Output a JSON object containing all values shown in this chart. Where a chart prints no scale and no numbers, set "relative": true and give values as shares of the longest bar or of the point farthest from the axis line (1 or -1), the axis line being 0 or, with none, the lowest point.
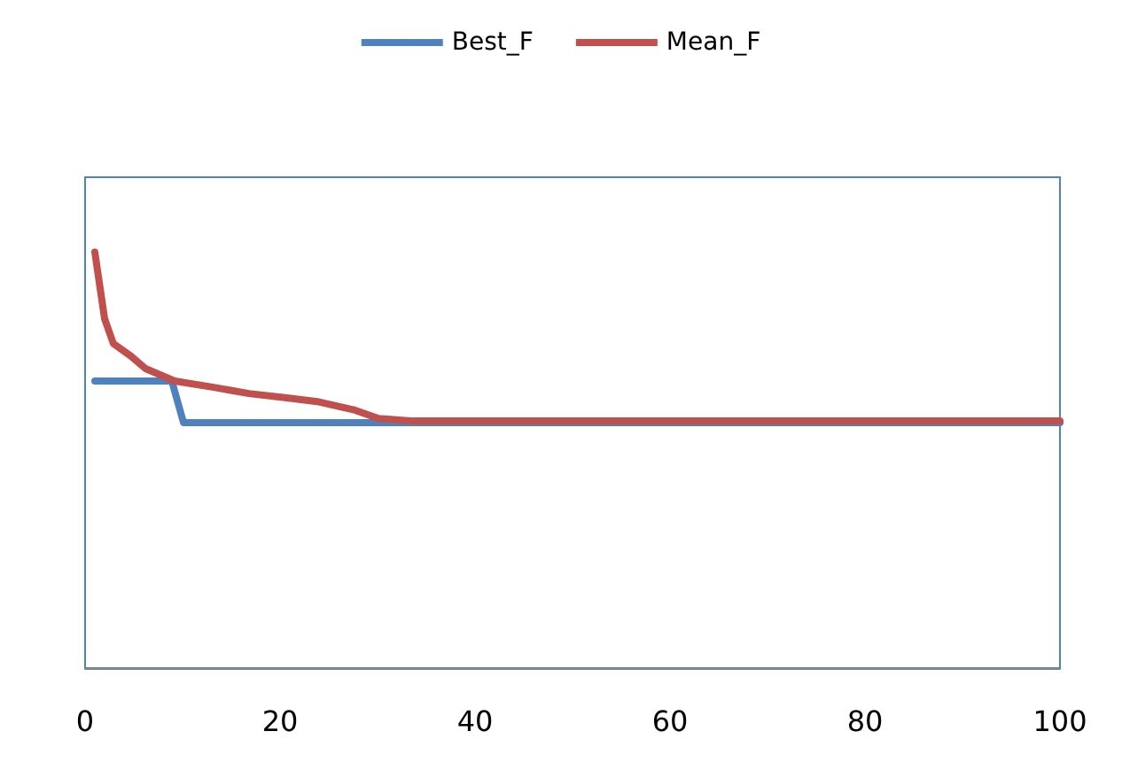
{
  "chart_data": {
    "type": "line",
    "relative": true,
    "xlim": [
      0,
      100
    ],
    "xticks": [
      0,
      20,
      40,
      60,
      80,
      100
    ],
    "tick_labels": "x",
    "grid": false,
    "legend": "top",
    "marker": "none",
    "line_style": "solid",
    "series": [
      {
        "name": "Best_F",
        "color": "#4f81bd",
        "x": [
          1,
          8.9,
          10.1,
          35,
          100
        ],
        "values": [
          0.69,
          0.69,
          0.59,
          0.59,
          0.59
        ]
      },
      {
        "name": "Mean_F",
        "color": "#c0504d",
        "x": [
          1,
          2,
          2.9,
          4.7,
          6.2,
          9.2,
          13.2,
          16.8,
          20.5,
          24,
          27.7,
          30.1,
          33.7,
          100
        ],
        "values": [
          1,
          0.84,
          0.78,
          0.75,
          0.72,
          0.69,
          0.675,
          0.66,
          0.65,
          0.64,
          0.62,
          0.6,
          0.594,
          0.594
        ]
      }
    ]
  }
}
